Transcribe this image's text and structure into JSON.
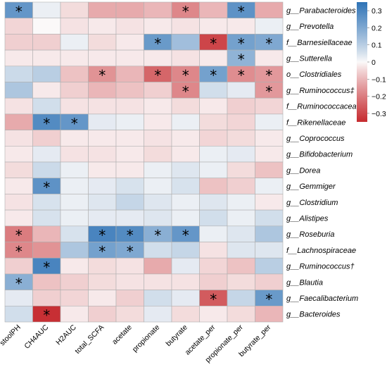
{
  "chart_data": {
    "type": "heatmap",
    "title": "",
    "columns": [
      "stoolPH",
      "CH4AUC",
      "H2AUC",
      "total_SCFA",
      "acetate",
      "propionate",
      "butyrate",
      "acetate_per",
      "propionate_per",
      "butyrate_per"
    ],
    "rows": [
      "g__Parabacteroides",
      "g__Prevotella",
      "f__Barnesiellaceae",
      "g__Sutterella",
      "o__Clostridiales",
      "g__Ruminococcus‡",
      "f__Ruminococcaceae",
      "f__Rikenellaceae",
      "g__Coprococcus",
      "g__Bifidobacterium",
      "g__Dorea",
      "g__Gemmiger",
      "g__Clostridium",
      "g__Alistipes",
      "g__Roseburia",
      "f__Lachnospiraceae",
      "g__Ruminococcus†",
      "g__Blautia",
      "g__Faecalibacterium",
      "g__Bacteroides"
    ],
    "values": [
      [
        0.25,
        0.02,
        -0.04,
        -0.12,
        -0.12,
        -0.1,
        -0.18,
        -0.1,
        0.26,
        -0.12
      ],
      [
        -0.05,
        0.0,
        -0.03,
        -0.02,
        -0.03,
        -0.02,
        -0.03,
        -0.02,
        -0.02,
        0.02
      ],
      [
        -0.06,
        -0.06,
        0.02,
        -0.04,
        -0.02,
        0.24,
        0.14,
        -0.3,
        0.22,
        0.2
      ],
      [
        -0.02,
        -0.02,
        -0.02,
        -0.02,
        -0.02,
        -0.02,
        -0.03,
        -0.02,
        0.17,
        -0.02
      ],
      [
        0.07,
        0.1,
        -0.08,
        -0.16,
        -0.1,
        -0.24,
        -0.18,
        0.22,
        -0.17,
        -0.15
      ],
      [
        0.12,
        -0.02,
        -0.06,
        -0.1,
        -0.08,
        -0.06,
        -0.18,
        0.06,
        0.03,
        -0.15
      ],
      [
        -0.03,
        0.06,
        -0.03,
        -0.03,
        -0.03,
        -0.02,
        -0.04,
        -0.02,
        -0.06,
        -0.05
      ],
      [
        -0.12,
        0.28,
        0.25,
        0.03,
        0.02,
        -0.02,
        0.02,
        -0.04,
        -0.05,
        0.02
      ],
      [
        -0.03,
        -0.06,
        -0.02,
        -0.02,
        -0.02,
        -0.03,
        -0.02,
        -0.05,
        -0.04,
        -0.02
      ],
      [
        -0.02,
        0.03,
        -0.03,
        -0.03,
        -0.02,
        -0.04,
        -0.02,
        0.02,
        0.03,
        -0.02
      ],
      [
        -0.04,
        0.07,
        0.02,
        -0.02,
        -0.02,
        0.02,
        0.04,
        0.02,
        -0.04,
        -0.08
      ],
      [
        -0.02,
        0.26,
        0.02,
        0.03,
        0.05,
        0.02,
        0.05,
        -0.08,
        -0.06,
        0.02
      ],
      [
        -0.03,
        0.05,
        0.02,
        0.04,
        0.08,
        0.04,
        0.02,
        0.04,
        0.02,
        -0.02
      ],
      [
        -0.02,
        0.05,
        0.02,
        0.03,
        0.03,
        0.04,
        0.02,
        0.06,
        0.02,
        0.06
      ],
      [
        -0.2,
        -0.1,
        0.05,
        0.3,
        0.28,
        0.18,
        0.25,
        0.02,
        0.04,
        0.12
      ],
      [
        -0.18,
        -0.16,
        0.12,
        0.22,
        0.2,
        0.06,
        0.08,
        -0.03,
        0.04,
        0.04
      ],
      [
        -0.06,
        0.3,
        -0.02,
        -0.04,
        -0.03,
        -0.12,
        0.03,
        -0.05,
        -0.08,
        0.1
      ],
      [
        0.18,
        -0.08,
        -0.06,
        -0.04,
        -0.03,
        -0.03,
        -0.03,
        -0.06,
        -0.04,
        -0.06
      ],
      [
        0.03,
        -0.06,
        -0.05,
        -0.02,
        -0.06,
        0.06,
        0.03,
        -0.26,
        0.08,
        0.24
      ],
      [
        0.06,
        -0.34,
        -0.02,
        -0.06,
        -0.04,
        0.03,
        -0.04,
        -0.02,
        -0.04,
        -0.1
      ]
    ],
    "significance_marker": "*",
    "significant": [
      [
        0,
        0
      ],
      [
        0,
        6
      ],
      [
        0,
        8
      ],
      [
        2,
        5
      ],
      [
        2,
        7
      ],
      [
        2,
        8
      ],
      [
        2,
        9
      ],
      [
        3,
        8
      ],
      [
        4,
        3
      ],
      [
        4,
        5
      ],
      [
        4,
        6
      ],
      [
        4,
        7
      ],
      [
        4,
        8
      ],
      [
        4,
        9
      ],
      [
        5,
        6
      ],
      [
        5,
        9
      ],
      [
        7,
        1
      ],
      [
        7,
        2
      ],
      [
        11,
        1
      ],
      [
        14,
        0
      ],
      [
        14,
        3
      ],
      [
        14,
        4
      ],
      [
        14,
        5
      ],
      [
        14,
        6
      ],
      [
        15,
        0
      ],
      [
        15,
        3
      ],
      [
        15,
        4
      ],
      [
        16,
        1
      ],
      [
        17,
        0
      ],
      [
        18,
        7
      ],
      [
        18,
        9
      ],
      [
        19,
        1
      ]
    ],
    "colorbar": {
      "min": -0.35,
      "max": 0.35,
      "ticks": [
        0.3,
        0.2,
        0.1,
        0,
        -0.1,
        -0.2,
        -0.3
      ],
      "tick_labels": [
        "0.3",
        "0.2",
        "0.1",
        "0",
        "−0.1",
        "−0.2",
        "−0.3"
      ],
      "colors": {
        "negative": "#c62a2f",
        "zero": "#fbf9f9",
        "positive": "#2e73b6"
      }
    },
    "grid": true,
    "legend": "right colorbar"
  }
}
